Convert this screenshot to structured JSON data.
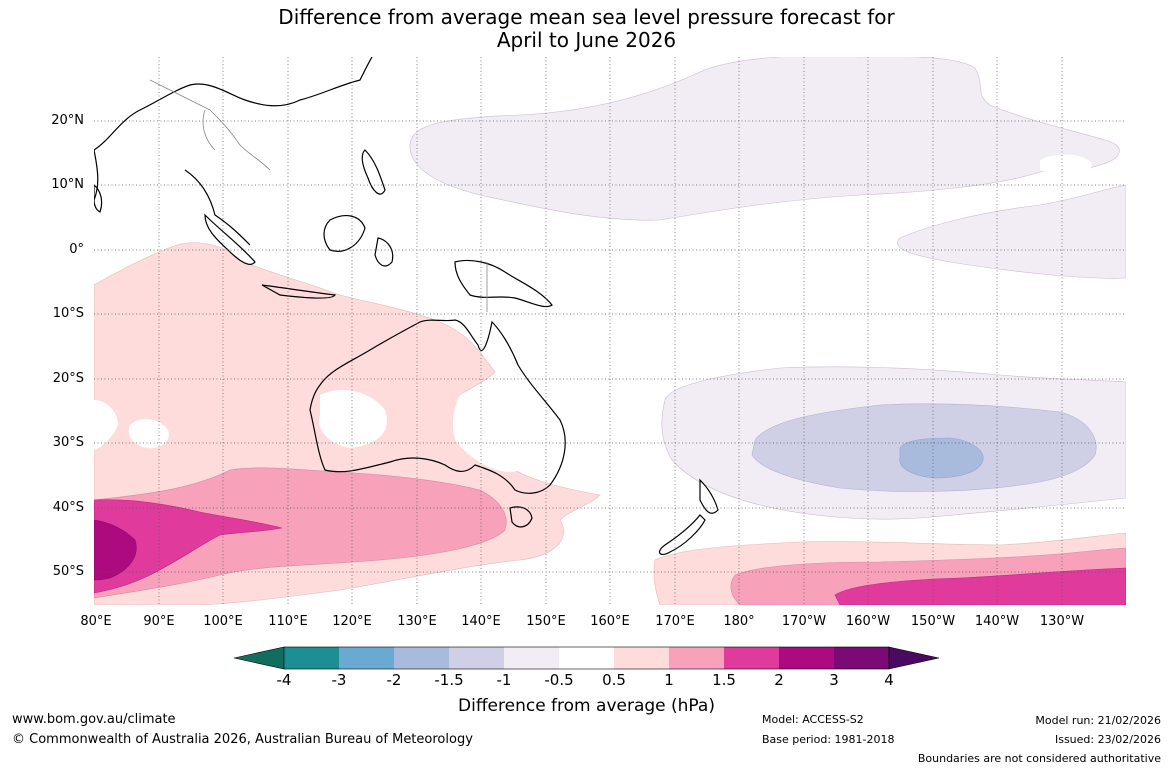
{
  "title": {
    "line1": "Difference from average mean sea level pressure forecast for",
    "line2": "April to June 2026"
  },
  "lat_labels": [
    "20°N",
    "10°N",
    "0°",
    "10°S",
    "20°S",
    "30°S",
    "40°S",
    "50°S"
  ],
  "lon_labels": [
    "80°E",
    "90°E",
    "100°E",
    "110°E",
    "120°E",
    "130°E",
    "140°E",
    "150°E",
    "160°E",
    "170°E",
    "180°",
    "170°W",
    "160°W",
    "150°W",
    "140°W",
    "130°W"
  ],
  "legend": {
    "title": "Difference from average (hPa)",
    "tick_labels": [
      "-4",
      "-3",
      "-2",
      "-1.5",
      "-1",
      "-0.5",
      "0.5",
      "1",
      "1.5",
      "2",
      "3",
      "4"
    ],
    "colors": [
      "#116e5e",
      "#1d8f93",
      "#6aaad2",
      "#a8bbdc",
      "#cfd0e6",
      "#f2ecf5",
      "#ffffff",
      "#fddcdb",
      "#f7a1bb",
      "#df3a9c",
      "#ae0a7f",
      "#7b0a77",
      "#4a0a60"
    ]
  },
  "footer": {
    "website": "www.bom.gov.au/climate",
    "copyright": "© Commonwealth of Australia 2026, Australian Bureau of Meteorology",
    "model": "Model: ACCESS-S2",
    "base_period": "Base period: 1981-2018",
    "model_run": "Model run: 21/02/2026",
    "issued": "Issued: 23/02/2026",
    "boundaries": "Boundaries are not considered authoritative"
  }
}
